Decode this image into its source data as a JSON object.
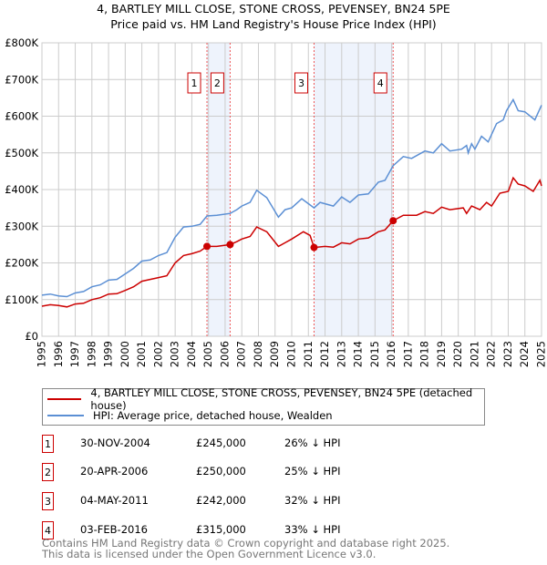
{
  "chart_data": {
    "type": "line",
    "title": "4, BARTLEY MILL CLOSE, STONE CROSS, PEVENSEY, BN24 5PE",
    "subtitle": "Price paid vs. HM Land Registry's House Price Index (HPI)",
    "xlim": [
      1995,
      2025
    ],
    "ylim": [
      0,
      800000
    ],
    "x_ticks": [
      "1995",
      "1996",
      "1997",
      "1998",
      "1999",
      "2000",
      "2001",
      "2002",
      "2003",
      "2004",
      "2005",
      "2006",
      "2007",
      "2008",
      "2009",
      "2010",
      "2011",
      "2012",
      "2013",
      "2014",
      "2015",
      "2016",
      "2017",
      "2018",
      "2019",
      "2020",
      "2021",
      "2022",
      "2023",
      "2024",
      "2025"
    ],
    "y_ticks": [
      {
        "v": 0,
        "label": "£0"
      },
      {
        "v": 100000,
        "label": "£100K"
      },
      {
        "v": 200000,
        "label": "£200K"
      },
      {
        "v": 300000,
        "label": "£300K"
      },
      {
        "v": 400000,
        "label": "£400K"
      },
      {
        "v": 500000,
        "label": "£500K"
      },
      {
        "v": 600000,
        "label": "£600K"
      },
      {
        "v": 700000,
        "label": "£700K"
      },
      {
        "v": 800000,
        "label": "£800K"
      }
    ],
    "grid": true,
    "series": [
      {
        "name": "4, BARTLEY MILL CLOSE, STONE CROSS, PEVENSEY, BN24 5PE (detached house)",
        "color": "#cc0000",
        "x": [
          1995,
          1995.5,
          1996,
          1996.5,
          1997,
          1997.5,
          1998,
          1998.5,
          1999,
          1999.5,
          2000,
          2000.5,
          2001,
          2001.5,
          2002,
          2002.5,
          2003,
          2003.5,
          2004,
          2004.5,
          2004.91,
          2005.5,
          2006.3,
          2006.7,
          2007,
          2007.5,
          2007.9,
          2008.5,
          2009.2,
          2009.6,
          2010,
          2010.7,
          2011.1,
          2011.34,
          2012,
          2012.5,
          2013,
          2013.5,
          2014,
          2014.6,
          2015.2,
          2015.6,
          2016.09,
          2016.7,
          2017.5,
          2018,
          2018.5,
          2019,
          2019.5,
          2020.3,
          2020.5,
          2020.8,
          2021.3,
          2021.7,
          2022,
          2022.5,
          2023,
          2023.3,
          2023.6,
          2024,
          2024.5,
          2024.9,
          2025
        ],
        "y": [
          82000,
          86000,
          84000,
          80000,
          88000,
          90000,
          100000,
          105000,
          115000,
          116000,
          125000,
          135000,
          150000,
          155000,
          160000,
          165000,
          200000,
          220000,
          225000,
          232000,
          245000,
          245000,
          250000,
          258000,
          265000,
          272000,
          298000,
          285000,
          245000,
          255000,
          265000,
          285000,
          275000,
          242000,
          245000,
          243000,
          255000,
          252000,
          265000,
          268000,
          285000,
          290000,
          315000,
          330000,
          330000,
          340000,
          335000,
          352000,
          345000,
          350000,
          335000,
          355000,
          345000,
          365000,
          355000,
          390000,
          395000,
          432000,
          415000,
          410000,
          395000,
          425000,
          410000
        ]
      },
      {
        "name": "HPI: Average price, detached house, Wealden",
        "color": "#5b8fd4",
        "x": [
          1995,
          1995.5,
          1996,
          1996.5,
          1997,
          1997.5,
          1998,
          1998.5,
          1999,
          1999.5,
          2000,
          2000.5,
          2001,
          2001.5,
          2002,
          2002.5,
          2003,
          2003.5,
          2004,
          2004.5,
          2004.91,
          2005.5,
          2006.3,
          2006.7,
          2007,
          2007.5,
          2007.9,
          2008.5,
          2009.2,
          2009.6,
          2010,
          2010.6,
          2011.34,
          2011.7,
          2012.5,
          2013,
          2013.5,
          2014,
          2014.6,
          2015.2,
          2015.6,
          2016.09,
          2016.7,
          2017.2,
          2018,
          2018.5,
          2019,
          2019.5,
          2020.2,
          2020.5,
          2020.6,
          2020.8,
          2021,
          2021.4,
          2021.8,
          2022.3,
          2022.7,
          2022.9,
          2023.3,
          2023.6,
          2024,
          2024.6,
          2025
        ],
        "y": [
          112000,
          115000,
          110000,
          108000,
          118000,
          122000,
          135000,
          140000,
          153000,
          155000,
          170000,
          185000,
          205000,
          208000,
          220000,
          228000,
          270000,
          298000,
          300000,
          305000,
          328000,
          330000,
          335000,
          345000,
          355000,
          365000,
          398000,
          378000,
          325000,
          345000,
          350000,
          375000,
          350000,
          365000,
          355000,
          380000,
          365000,
          385000,
          388000,
          420000,
          425000,
          465000,
          490000,
          485000,
          505000,
          500000,
          525000,
          505000,
          510000,
          520000,
          500000,
          525000,
          510000,
          545000,
          530000,
          580000,
          590000,
          615000,
          645000,
          615000,
          612000,
          590000,
          630000
        ]
      }
    ],
    "sales": [
      {
        "n": "1",
        "x": 2004.91,
        "price": 245000
      },
      {
        "n": "2",
        "x": 2006.3,
        "price": 250000
      },
      {
        "n": "3",
        "x": 2011.34,
        "price": 242000
      },
      {
        "n": "4",
        "x": 2016.09,
        "price": 315000
      }
    ],
    "shaded_ranges": [
      [
        2004.91,
        2006.3
      ],
      [
        2011.34,
        2016.09
      ]
    ],
    "legend_placement": "below"
  },
  "legend": {
    "red": "4, BARTLEY MILL CLOSE, STONE CROSS, PEVENSEY, BN24 5PE (detached house)",
    "blue": "HPI: Average price, detached house, Wealden"
  },
  "table": [
    {
      "n": "1",
      "date": "30-NOV-2004",
      "price": "£245,000",
      "pct": "26% ↓ HPI"
    },
    {
      "n": "2",
      "date": "20-APR-2006",
      "price": "£250,000",
      "pct": "25% ↓ HPI"
    },
    {
      "n": "3",
      "date": "04-MAY-2011",
      "price": "£242,000",
      "pct": "32% ↓ HPI"
    },
    {
      "n": "4",
      "date": "03-FEB-2016",
      "price": "£315,000",
      "pct": "33% ↓ HPI"
    }
  ],
  "footer": {
    "line1": "Contains HM Land Registry data © Crown copyright and database right 2025.",
    "line2": "This data is licensed under the Open Government Licence v3.0."
  }
}
